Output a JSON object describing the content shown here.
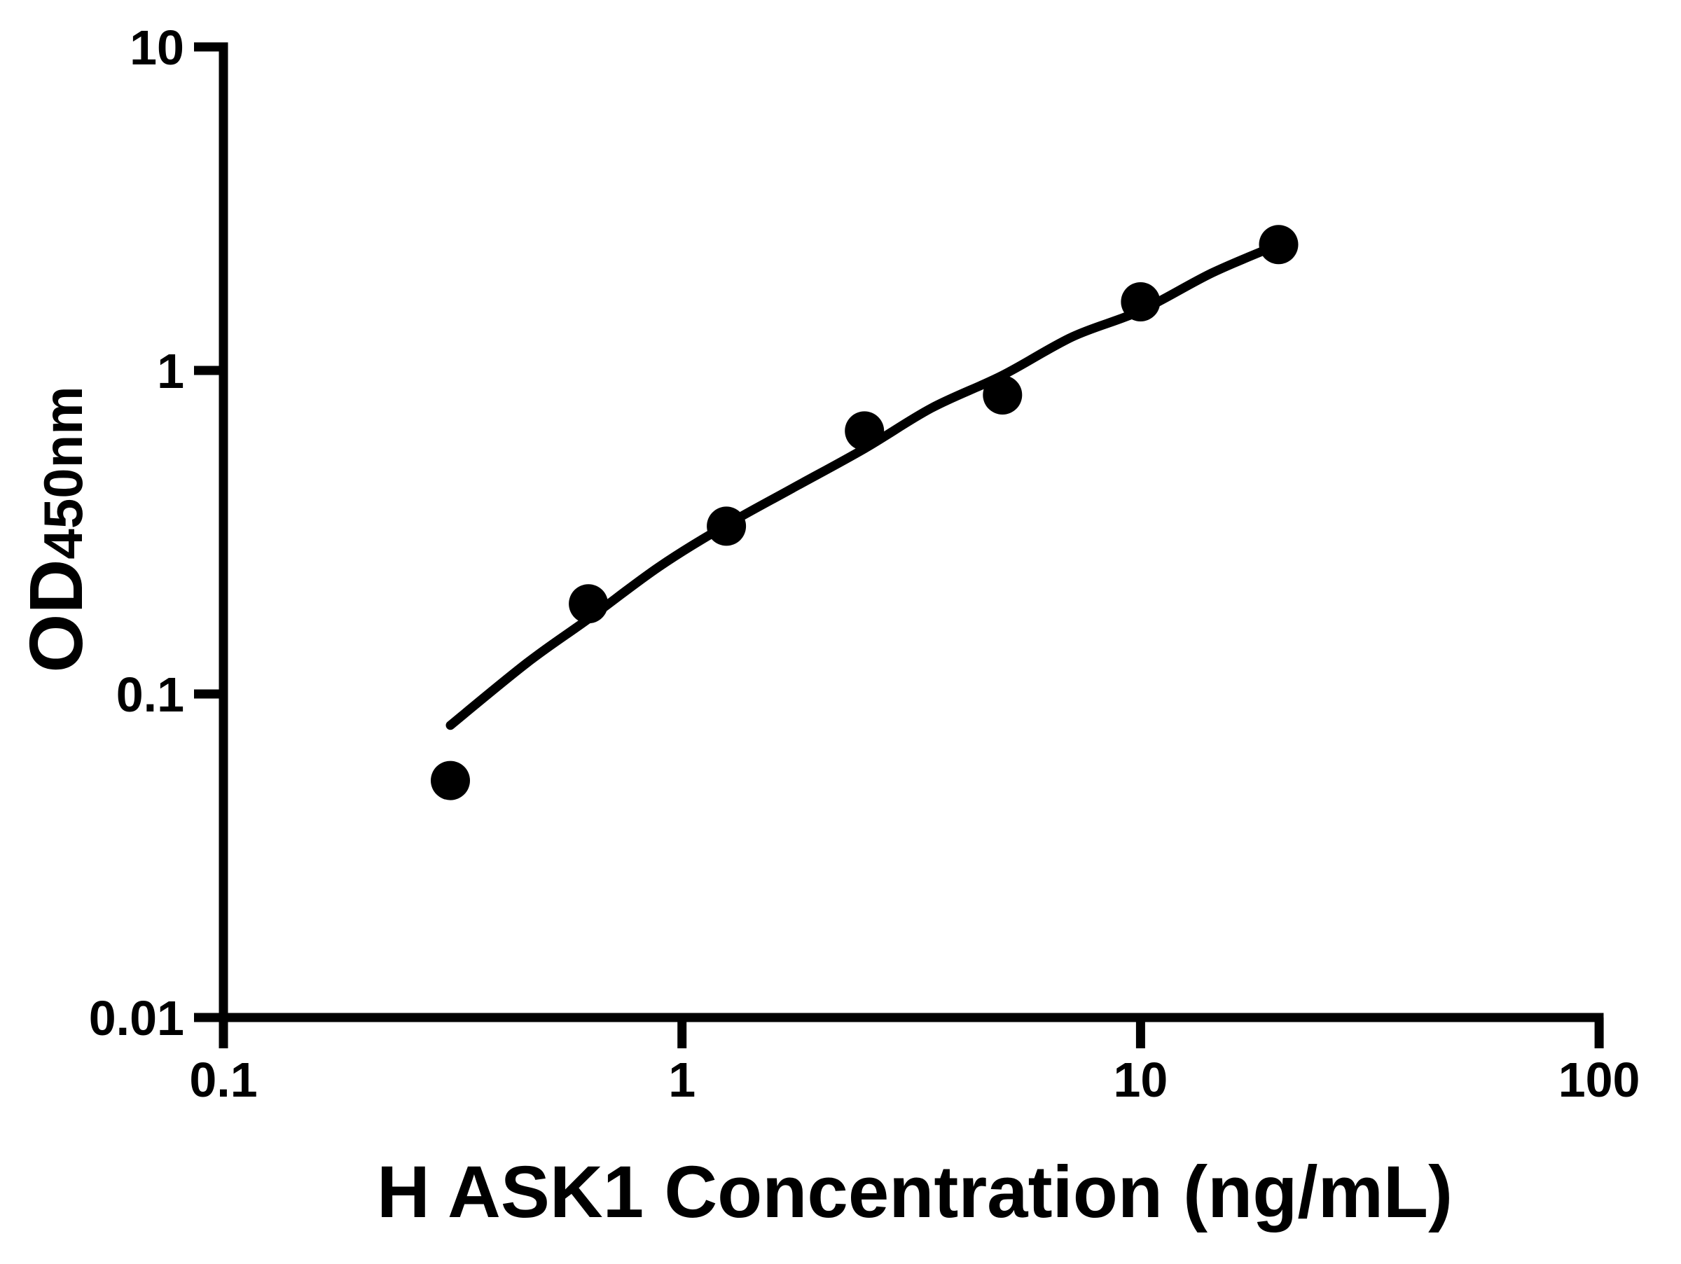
{
  "figure": {
    "background_color": "#ffffff",
    "ink_color": "#000000"
  },
  "chart_data": {
    "type": "scatter",
    "title": "",
    "xlabel": "H ASK1 Concentration (ng/mL)",
    "ylabel_main": "OD",
    "ylabel_sub": "450nm",
    "x_scale": "log",
    "y_scale": "log",
    "xlim": [
      0.1,
      100
    ],
    "ylim": [
      0.01,
      10
    ],
    "grid": false,
    "legend": null,
    "x_ticks": [
      {
        "value": 0.1,
        "label": "0.1"
      },
      {
        "value": 1,
        "label": "1"
      },
      {
        "value": 10,
        "label": "10"
      },
      {
        "value": 100,
        "label": "100"
      }
    ],
    "y_ticks": [
      {
        "value": 0.01,
        "label": "0.01"
      },
      {
        "value": 0.1,
        "label": "0.1"
      },
      {
        "value": 1,
        "label": "1"
      },
      {
        "value": 10,
        "label": "10"
      }
    ],
    "series": [
      {
        "name": "standard-points",
        "kind": "scatter",
        "marker": "filled-circle",
        "color": "#000000",
        "points": [
          {
            "x": 0.3125,
            "y": 0.054
          },
          {
            "x": 0.625,
            "y": 0.19
          },
          {
            "x": 1.25,
            "y": 0.33
          },
          {
            "x": 2.5,
            "y": 0.65
          },
          {
            "x": 5,
            "y": 0.84
          },
          {
            "x": 10,
            "y": 1.63
          },
          {
            "x": 20,
            "y": 2.45
          }
        ]
      },
      {
        "name": "fit-curve",
        "kind": "line",
        "color": "#000000",
        "points": [
          {
            "x": 0.3125,
            "y": 0.08
          },
          {
            "x": 0.46,
            "y": 0.125
          },
          {
            "x": 0.63,
            "y": 0.172
          },
          {
            "x": 0.89,
            "y": 0.247
          },
          {
            "x": 1.25,
            "y": 0.333
          },
          {
            "x": 1.74,
            "y": 0.432
          },
          {
            "x": 2.5,
            "y": 0.573
          },
          {
            "x": 3.5,
            "y": 0.765
          },
          {
            "x": 5,
            "y": 0.966
          },
          {
            "x": 7.1,
            "y": 1.27
          },
          {
            "x": 10,
            "y": 1.53
          },
          {
            "x": 14.3,
            "y": 2.0
          },
          {
            "x": 20,
            "y": 2.45
          }
        ]
      }
    ]
  }
}
